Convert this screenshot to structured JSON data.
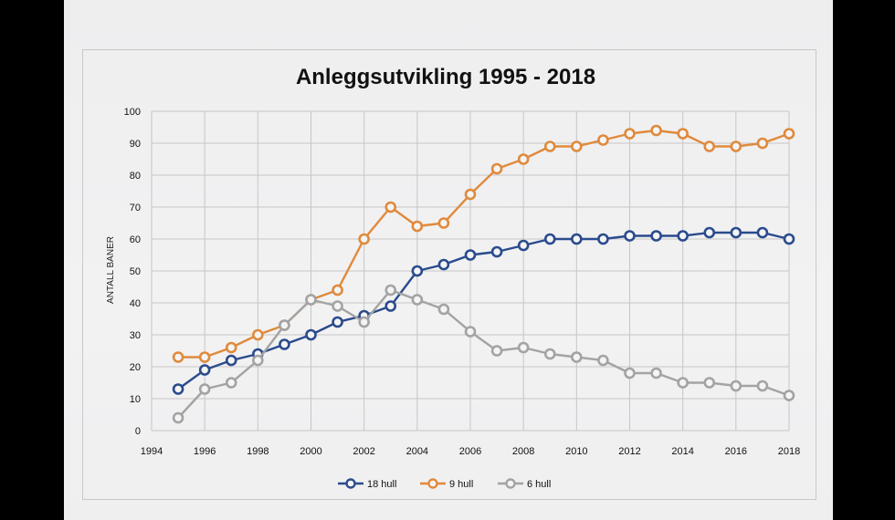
{
  "chart_data": {
    "type": "line",
    "title": "Anleggsutvikling 1995 - 2018",
    "xlabel": "",
    "ylabel": "ANTALL BANER",
    "xlim": [
      1994,
      2018
    ],
    "ylim": [
      0,
      100
    ],
    "x_ticks": [
      1994,
      1996,
      1998,
      2000,
      2002,
      2004,
      2006,
      2008,
      2010,
      2012,
      2014,
      2016,
      2018
    ],
    "y_ticks": [
      0,
      10,
      20,
      30,
      40,
      50,
      60,
      70,
      80,
      90,
      100
    ],
    "grid": true,
    "legend_position": "bottom",
    "x": [
      1995,
      1996,
      1997,
      1998,
      1999,
      2000,
      2001,
      2002,
      2003,
      2004,
      2005,
      2006,
      2007,
      2008,
      2009,
      2010,
      2011,
      2012,
      2013,
      2014,
      2015,
      2016,
      2017,
      2018
    ],
    "series": [
      {
        "name": "18 hull",
        "color": "#2a4b8d",
        "values": [
          13,
          19,
          22,
          24,
          27,
          30,
          34,
          36,
          39,
          50,
          52,
          55,
          56,
          58,
          60,
          60,
          60,
          61,
          61,
          61,
          62,
          62,
          62,
          60
        ]
      },
      {
        "name": "9 hull",
        "color": "#e08a3c",
        "values": [
          23,
          23,
          26,
          30,
          33,
          41,
          44,
          60,
          70,
          64,
          65,
          74,
          82,
          85,
          89,
          89,
          91,
          93,
          94,
          93,
          89,
          89,
          90,
          93
        ]
      },
      {
        "name": "6 hull",
        "color": "#a3a3a3",
        "values": [
          4,
          13,
          15,
          22,
          33,
          41,
          39,
          34,
          44,
          41,
          38,
          31,
          25,
          26,
          24,
          23,
          22,
          18,
          18,
          15,
          15,
          14,
          14,
          11
        ]
      }
    ]
  }
}
